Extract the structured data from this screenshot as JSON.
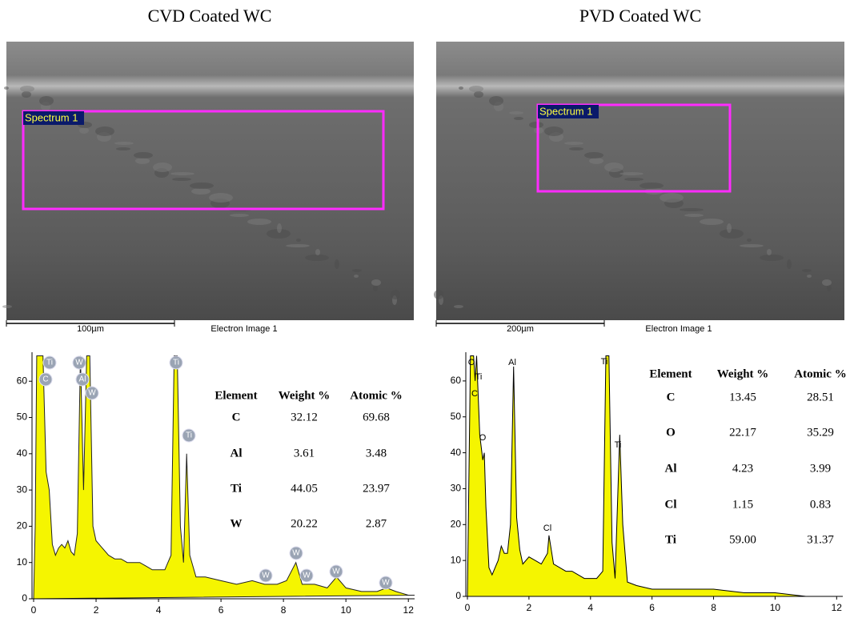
{
  "panels": [
    {
      "title": "CVD Coated WC",
      "image": {
        "spectrum_label": "Spectrum 1",
        "scale_bar": "100µm",
        "caption": "Electron Image 1"
      },
      "table": {
        "header": [
          "Element",
          "Weight %",
          "Atomic %"
        ],
        "rows": [
          [
            "C",
            "32.12",
            "69.68"
          ],
          [
            "Al",
            "3.61",
            "3.48"
          ],
          [
            "Ti",
            "44.05",
            "23.97"
          ],
          [
            "W",
            "20.22",
            "2.87"
          ]
        ]
      }
    },
    {
      "title": "PVD Coated WC",
      "image": {
        "spectrum_label": "Spectrum 1",
        "scale_bar": "200µm",
        "caption": "Electron Image 1"
      },
      "table": {
        "header": [
          "Element",
          "Weight %",
          "Atomic %"
        ],
        "rows": [
          [
            "C",
            "13.45",
            "28.51"
          ],
          [
            "O",
            "22.17",
            "35.29"
          ],
          [
            "Al",
            "4.23",
            "3.99"
          ],
          [
            "Cl",
            "1.15",
            "0.83"
          ],
          [
            "Ti",
            "59.00",
            "31.37"
          ]
        ]
      }
    }
  ],
  "chart_data": [
    {
      "type": "area",
      "color": "#f5f500",
      "edge_color": "#222222",
      "xlim": [
        0,
        12.2
      ],
      "ylim": [
        0,
        68
      ],
      "xticks": [
        0,
        2,
        4,
        6,
        8,
        10,
        12
      ],
      "yticks": [
        0,
        10,
        20,
        30,
        40,
        50,
        60
      ],
      "x": [
        0,
        0.05,
        0.1,
        0.2,
        0.25,
        0.3,
        0.4,
        0.5,
        0.6,
        0.7,
        0.8,
        0.9,
        1.0,
        1.1,
        1.2,
        1.3,
        1.4,
        1.5,
        1.6,
        1.7,
        1.8,
        1.9,
        2.0,
        2.2,
        2.4,
        2.6,
        2.8,
        3.0,
        3.2,
        3.4,
        3.6,
        3.8,
        4.0,
        4.2,
        4.4,
        4.5,
        4.6,
        4.7,
        4.8,
        4.9,
        5.0,
        5.2,
        5.5,
        6.0,
        6.5,
        7.0,
        7.4,
        7.8,
        8.1,
        8.4,
        8.6,
        9.0,
        9.4,
        9.7,
        10.0,
        10.5,
        11.0,
        11.3,
        11.6,
        12.0,
        12.2
      ],
      "values": [
        0,
        20,
        67,
        67,
        67,
        67,
        35,
        30,
        15,
        12,
        14,
        15,
        14,
        16,
        13,
        12,
        18,
        67,
        30,
        67,
        67,
        20,
        16,
        14,
        12,
        11,
        11,
        10,
        10,
        10,
        9,
        8,
        8,
        8,
        12,
        67,
        67,
        20,
        10,
        40,
        12,
        6,
        6,
        5,
        4,
        5,
        4,
        4,
        5,
        10,
        4,
        4,
        3,
        6,
        3,
        2,
        2,
        3,
        2,
        1,
        1
      ],
      "annotations": [
        "Ti",
        "C",
        "W",
        "Al",
        "W",
        "Ti",
        "Ti",
        "W",
        "W",
        "W",
        "W",
        "W"
      ]
    },
    {
      "type": "area",
      "color": "#f5f500",
      "edge_color": "#000000",
      "xlim": [
        0,
        12.2
      ],
      "ylim": [
        0,
        68
      ],
      "xticks": [
        0,
        2,
        4,
        6,
        8,
        10,
        12
      ],
      "yticks": [
        0,
        10,
        20,
        30,
        40,
        50,
        60
      ],
      "x": [
        0,
        0.1,
        0.2,
        0.25,
        0.3,
        0.4,
        0.5,
        0.55,
        0.6,
        0.7,
        0.8,
        0.9,
        1.0,
        1.1,
        1.2,
        1.3,
        1.4,
        1.5,
        1.6,
        1.7,
        1.8,
        2.0,
        2.2,
        2.4,
        2.6,
        2.65,
        2.8,
        3.0,
        3.2,
        3.4,
        3.6,
        3.8,
        4.0,
        4.2,
        4.4,
        4.5,
        4.6,
        4.7,
        4.8,
        4.95,
        5.05,
        5.2,
        5.5,
        6.0,
        6.5,
        7.0,
        8.0,
        9.0,
        10.0,
        11.0,
        12.0
      ],
      "values": [
        0,
        67,
        67,
        60,
        67,
        45,
        38,
        40,
        25,
        8,
        6,
        8,
        10,
        14,
        12,
        12,
        20,
        64,
        22,
        13,
        9,
        11,
        10,
        9,
        12,
        17,
        9,
        8,
        7,
        7,
        6,
        5,
        5,
        5,
        7,
        67,
        67,
        15,
        5,
        45,
        20,
        4,
        3,
        2,
        2,
        2,
        2,
        1,
        1,
        0,
        0
      ],
      "annotations": [
        "O",
        "Ti",
        "C",
        "O",
        "Al",
        "Ti",
        "Ti",
        "Cl"
      ]
    }
  ]
}
